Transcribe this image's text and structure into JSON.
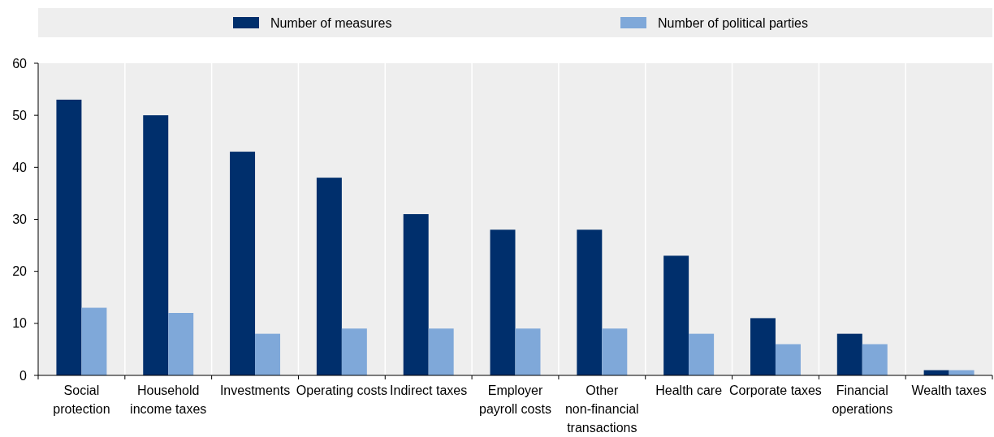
{
  "chart_data": {
    "type": "bar",
    "categories": [
      "Social protection",
      "Household income taxes",
      "Investments",
      "Operating costs",
      "Indirect taxes",
      "Employer payroll costs",
      "Other non-financial transactions",
      "Health care",
      "Corporate taxes",
      "Financial operations",
      "Wealth taxes"
    ],
    "series": [
      {
        "name": "Number of measures",
        "color": "#002f6c",
        "values": [
          53,
          50,
          43,
          38,
          31,
          28,
          28,
          23,
          11,
          8,
          1
        ]
      },
      {
        "name": "Number of political parties",
        "color": "#7fa8d9",
        "values": [
          13,
          12,
          8,
          9,
          9,
          9,
          9,
          8,
          6,
          6,
          1
        ]
      }
    ],
    "ylim": [
      0,
      60
    ],
    "yticks": [
      0,
      10,
      20,
      30,
      40,
      50,
      60
    ],
    "grid": "x",
    "legend": "top"
  }
}
